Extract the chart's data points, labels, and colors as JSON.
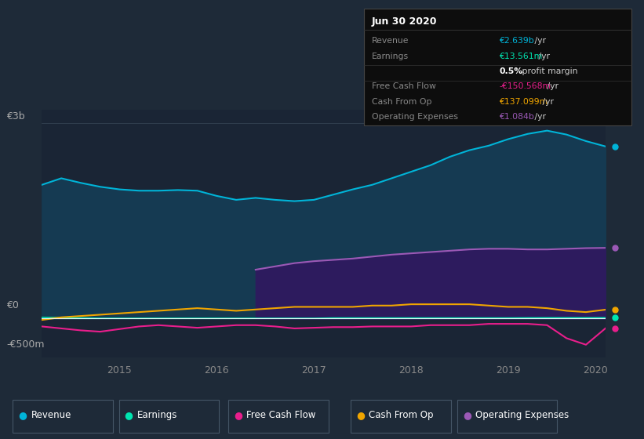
{
  "background_color": "#1e2a38",
  "plot_bg_color": "#1a2535",
  "title": "Jun 30 2020",
  "ylabel_top": "€3b",
  "ylabel_bottom": "-€500m",
  "y_zero_label": "€0",
  "x_ticks": [
    "2015",
    "2016",
    "2017",
    "2018",
    "2019",
    "2020"
  ],
  "legend_items": [
    {
      "label": "Revenue",
      "color": "#00b4d8"
    },
    {
      "label": "Earnings",
      "color": "#00e5b0"
    },
    {
      "label": "Free Cash Flow",
      "color": "#e91e8c"
    },
    {
      "label": "Cash From Op",
      "color": "#f0a500"
    },
    {
      "label": "Operating Expenses",
      "color": "#9b59b6"
    }
  ],
  "info_box": {
    "title": "Jun 30 2020",
    "rows": [
      {
        "label": "Revenue",
        "value": "€2.639b",
        "suffix": " /yr",
        "value_color": "#00b4d8"
      },
      {
        "label": "Earnings",
        "value": "€13.561m",
        "suffix": " /yr",
        "value_color": "#00e5b0"
      },
      {
        "label": "",
        "value": "0.5%",
        "suffix": " profit margin",
        "value_color": "#ffffff",
        "bold": true
      },
      {
        "label": "Free Cash Flow",
        "value": "-€150.568m",
        "suffix": " /yr",
        "value_color": "#e91e8c"
      },
      {
        "label": "Cash From Op",
        "value": "€137.099m",
        "suffix": " /yr",
        "value_color": "#f0a500"
      },
      {
        "label": "Operating Expenses",
        "value": "€1.084b",
        "suffix": " /yr",
        "value_color": "#9b59b6"
      }
    ]
  },
  "revenue": [
    2.05,
    2.15,
    2.08,
    2.02,
    1.98,
    1.96,
    1.96,
    1.97,
    1.96,
    1.88,
    1.82,
    1.85,
    1.82,
    1.8,
    1.82,
    1.9,
    1.98,
    2.05,
    2.15,
    2.25,
    2.35,
    2.48,
    2.58,
    2.65,
    2.75,
    2.83,
    2.88,
    2.82,
    2.72,
    2.639
  ],
  "earnings": [
    0.02,
    0.015,
    0.01,
    0.005,
    0.005,
    0.005,
    0.005,
    0.005,
    0.005,
    0.005,
    0.005,
    0.005,
    0.005,
    0.005,
    0.005,
    0.01,
    0.01,
    0.01,
    0.01,
    0.01,
    0.01,
    0.01,
    0.01,
    0.01,
    0.01,
    0.012,
    0.013,
    0.013,
    0.013,
    0.01356
  ],
  "free_cash_flow": [
    -0.12,
    -0.15,
    -0.18,
    -0.2,
    -0.16,
    -0.12,
    -0.1,
    -0.12,
    -0.14,
    -0.12,
    -0.1,
    -0.1,
    -0.12,
    -0.15,
    -0.14,
    -0.13,
    -0.13,
    -0.12,
    -0.12,
    -0.12,
    -0.1,
    -0.1,
    -0.1,
    -0.08,
    -0.08,
    -0.08,
    -0.1,
    -0.3,
    -0.4,
    -0.15
  ],
  "cash_from_op": [
    -0.02,
    0.02,
    0.04,
    0.06,
    0.08,
    0.1,
    0.12,
    0.14,
    0.16,
    0.14,
    0.12,
    0.14,
    0.16,
    0.18,
    0.18,
    0.18,
    0.18,
    0.2,
    0.2,
    0.22,
    0.22,
    0.22,
    0.22,
    0.2,
    0.18,
    0.18,
    0.16,
    0.12,
    0.1,
    0.137
  ],
  "operating_expenses": [
    0.0,
    0.0,
    0.0,
    0.0,
    0.0,
    0.0,
    0.0,
    0.0,
    0.0,
    0.0,
    0.0,
    0.75,
    0.8,
    0.85,
    0.88,
    0.9,
    0.92,
    0.95,
    0.98,
    1.0,
    1.02,
    1.04,
    1.06,
    1.07,
    1.07,
    1.06,
    1.06,
    1.07,
    1.08,
    1.084
  ],
  "ylim": [
    -0.6,
    3.2
  ],
  "xlim_min": 0,
  "xlim_max": 29
}
